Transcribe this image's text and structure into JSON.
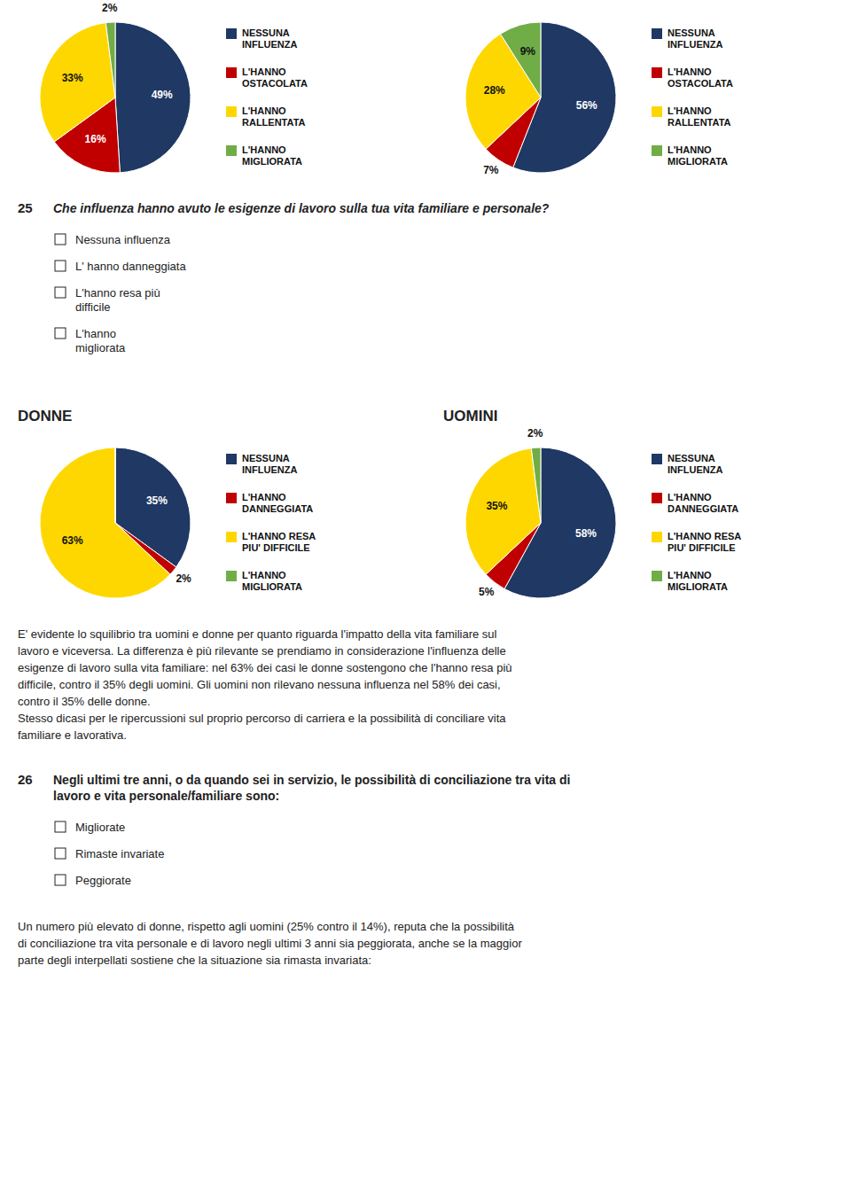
{
  "chart_data": [
    {
      "type": "pie",
      "categories": [
        "NESSUNA\nINFLUENZA",
        "L'HANNO\nOSTACOLATA",
        "L'HANNO\nRALLENTATA",
        "L'HANNO\nMIGLIORATA"
      ],
      "values": [
        49,
        16,
        33,
        2
      ],
      "value_labels": [
        "49%",
        "16%",
        "33%",
        "2%"
      ],
      "colors": [
        "#1F3864",
        "#C00000",
        "#FFD700",
        "#70AD47"
      ],
      "data_labels": true,
      "legend": "right",
      "annotations": [
        "25",
        "Che influenza hanno avuto le esigenze di lavoro sulla tua vita familiare e personale?",
        "Nessuna influenza",
        "L' hanno danneggiata",
        "L'hanno resa più\ndifficile",
        "L'hanno\nmigliorata",
        "E' evidente lo squilibrio tra uomini e donne per quanto riguarda l'impatto della vita familiare sul\nlavoro e viceversa. La differenza è più rilevante se prendiamo in considerazione l'influenza delle\nesigenze di lavoro sulla vita familiare: nel 63% dei casi le donne sostengono che l'hanno resa più\ndifficile, contro il 35% degli uomini. Gli uomini non rilevano nessuna influenza nel 58% dei casi,\ncontro il 35% delle donne.\nStesso dicasi per le ripercussioni sul proprio percorso di carriera e la possibilità di conciliare vita\nfamiliare e lavorativa.",
        "26",
        "Negli ultimi tre anni, o da quando sei in servizio, le possibilità di conciliazione tra vita di\nlavoro e vita personale/familiare sono:",
        "Migliorate",
        "Rimaste invariate",
        "Peggiorate",
        "Un numero più elevato di donne, rispetto agli uomini (25% contro il 14%), reputa che la possibilità\ndi conciliazione tra vita personale e di lavoro negli ultimi 3 anni sia peggiorata, anche se la maggior\nparte degli interpellati sostiene che la situazione sia rimasta invariata:"
      ]
    },
    {
      "type": "pie",
      "categories": [
        "NESSUNA\nINFLUENZA",
        "L'HANNO\nOSTACOLATA",
        "L'HANNO\nRALLENTATA",
        "L'HANNO\nMIGLIORATA"
      ],
      "values": [
        56,
        7,
        28,
        9
      ],
      "value_labels": [
        "56%",
        "7%",
        "28%",
        "9%"
      ],
      "colors": [
        "#1F3864",
        "#C00000",
        "#FFD700",
        "#70AD47"
      ],
      "data_labels": true,
      "legend": "right"
    },
    {
      "type": "pie",
      "title": "DONNE",
      "categories": [
        "NESSUNA\nINFLUENZA",
        "L'HANNO\nDANNEGGIATA",
        "L'HANNO RESA\nPIU' DIFFICILE",
        "L'HANNO\nMIGLIORATA"
      ],
      "values": [
        35,
        2,
        63,
        0
      ],
      "value_labels": [
        "35%",
        "2%",
        "63%",
        null
      ],
      "colors": [
        "#1F3864",
        "#C00000",
        "#FFD700",
        "#70AD47"
      ],
      "data_labels": true,
      "legend": "right"
    },
    {
      "type": "pie",
      "title": "UOMINI",
      "categories": [
        "NESSUNA\nINFLUENZA",
        "L'HANNO\nDANNEGGIATA",
        "L'HANNO RESA\nPIU' DIFFICILE",
        "L'HANNO\nMIGLIORATA"
      ],
      "values": [
        58,
        5,
        35,
        2
      ],
      "value_labels": [
        "58%",
        "5%",
        "35%",
        "2%"
      ],
      "colors": [
        "#1F3864",
        "#C00000",
        "#FFD700",
        "#70AD47"
      ],
      "data_labels": true,
      "legend": "right"
    }
  ]
}
